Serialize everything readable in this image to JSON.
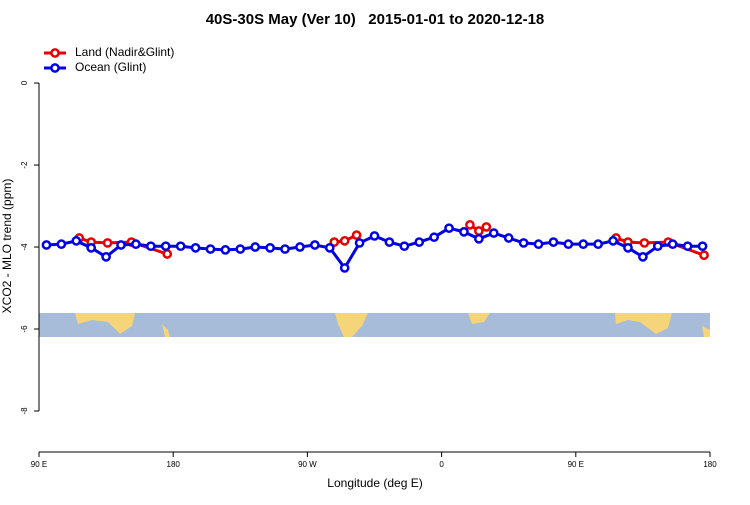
{
  "chart_data": {
    "type": "line",
    "title": "40S-30S May (Ver 10)   2015-01-01 to 2020-12-18",
    "x_label": "Longitude (deg E)",
    "y_label": "XCO2 - MLO trend (ppm)",
    "xlim": [
      90,
      540
    ],
    "xticks": [
      {
        "value": 90,
        "label": "90 E"
      },
      {
        "value": 180,
        "label": "180"
      },
      {
        "value": 270,
        "label": "90 W"
      },
      {
        "value": 360,
        "label": "0"
      },
      {
        "value": 450,
        "label": "90 E"
      },
      {
        "value": 540,
        "label": "180"
      }
    ],
    "ylim": [
      -9,
      1.05
    ],
    "yticks": [
      0,
      -2,
      -4,
      -6,
      -8
    ],
    "legend": "top-left",
    "series": [
      {
        "name": "Land (Nadir&Glint)",
        "color": "#e60000",
        "x": [
          117,
          125,
          136,
          152,
          176,
          288,
          295,
          303,
          379,
          385,
          390,
          477,
          485,
          496,
          512,
          536
        ],
        "values": [
          -3.78,
          -3.88,
          -3.9,
          -3.88,
          -4.17,
          -3.88,
          -3.85,
          -3.71,
          -3.46,
          -3.61,
          -3.51,
          -3.78,
          -3.88,
          -3.9,
          -3.88,
          -4.2
        ]
      },
      {
        "name": "Ocean (Glint)",
        "color": "#0000e6",
        "x": [
          95,
          105,
          115,
          125,
          135,
          145,
          155,
          165,
          175,
          185,
          195,
          205,
          215,
          225,
          235,
          245,
          255,
          265,
          275,
          285,
          295,
          305,
          315,
          325,
          335,
          345,
          355,
          365,
          375,
          385,
          395,
          405,
          415,
          425,
          435,
          445,
          455,
          465,
          475,
          485,
          495,
          505,
          515,
          525,
          535
        ],
        "values": [
          -3.95,
          -3.93,
          -3.85,
          -4.02,
          -4.24,
          -3.95,
          -3.93,
          -3.98,
          -3.98,
          -3.98,
          -4.02,
          -4.05,
          -4.07,
          -4.05,
          -4.0,
          -4.02,
          -4.05,
          -4.0,
          -3.95,
          -4.02,
          -4.51,
          -3.9,
          -3.73,
          -3.88,
          -3.98,
          -3.88,
          -3.76,
          -3.54,
          -3.63,
          -3.8,
          -3.66,
          -3.78,
          -3.9,
          -3.93,
          -3.88,
          -3.93,
          -3.93,
          -3.93,
          -3.85,
          -4.02,
          -4.24,
          -3.98,
          -3.93,
          -3.98,
          -3.98
        ]
      }
    ]
  }
}
